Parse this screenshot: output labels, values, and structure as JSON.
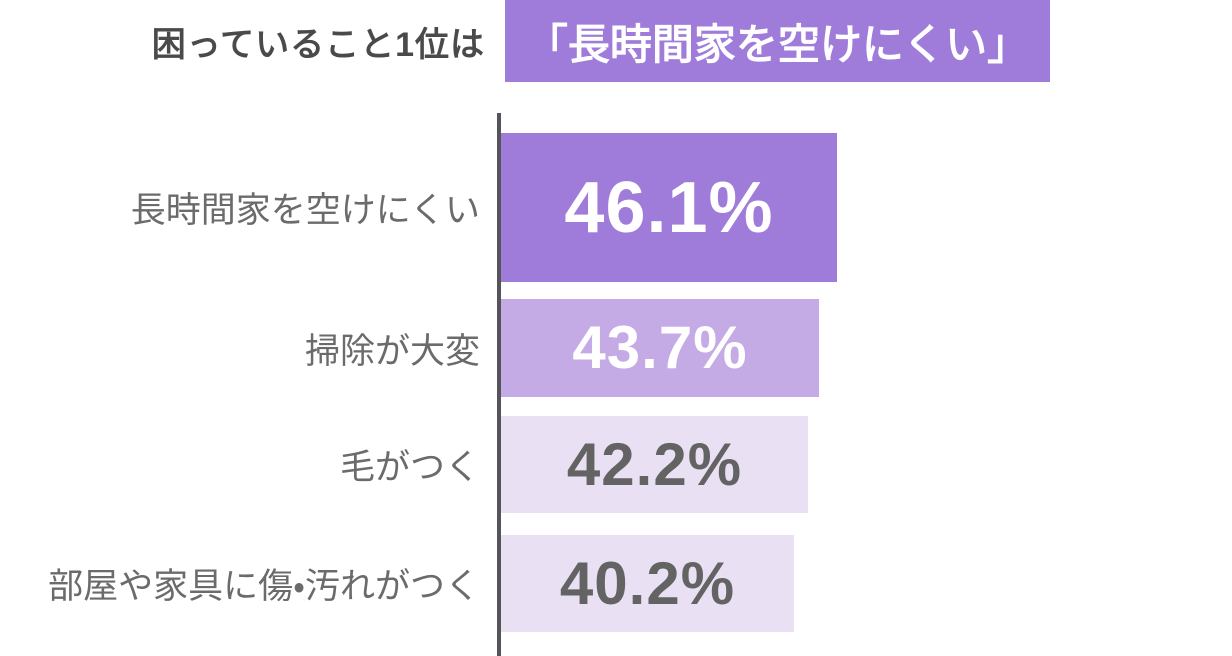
{
  "header": {
    "prefix": "困っていること1位は",
    "highlight": "「長時間家を空けにくい」",
    "prefix_color": "#4a4a4a",
    "highlight_bg": "#9f7cda",
    "highlight_text_color": "#ffffff"
  },
  "chart_data": {
    "type": "bar",
    "orientation": "horizontal",
    "title": "困っていること1位は「長時間家を空けにくい」",
    "categories": [
      "長時間家を空けにくい",
      "掃除が大変",
      "毛がつく",
      "部屋や家具に傷・汚れがつく"
    ],
    "values": [
      46.1,
      43.7,
      42.2,
      40.2
    ],
    "value_labels": [
      "46.1%",
      "43.7%",
      "42.2%",
      "40.2%"
    ],
    "unit": "%",
    "xlim": [
      0,
      100
    ],
    "grid": false,
    "legend": false,
    "bar_colors": [
      "#9f7cda",
      "#c5abe5",
      "#e9e1f3",
      "#e9e1f3"
    ],
    "value_text_colors": [
      "#ffffff",
      "#ffffff",
      "#636363",
      "#636363"
    ],
    "label_color": "#6b6b6b",
    "axis_color": "#54545a"
  }
}
